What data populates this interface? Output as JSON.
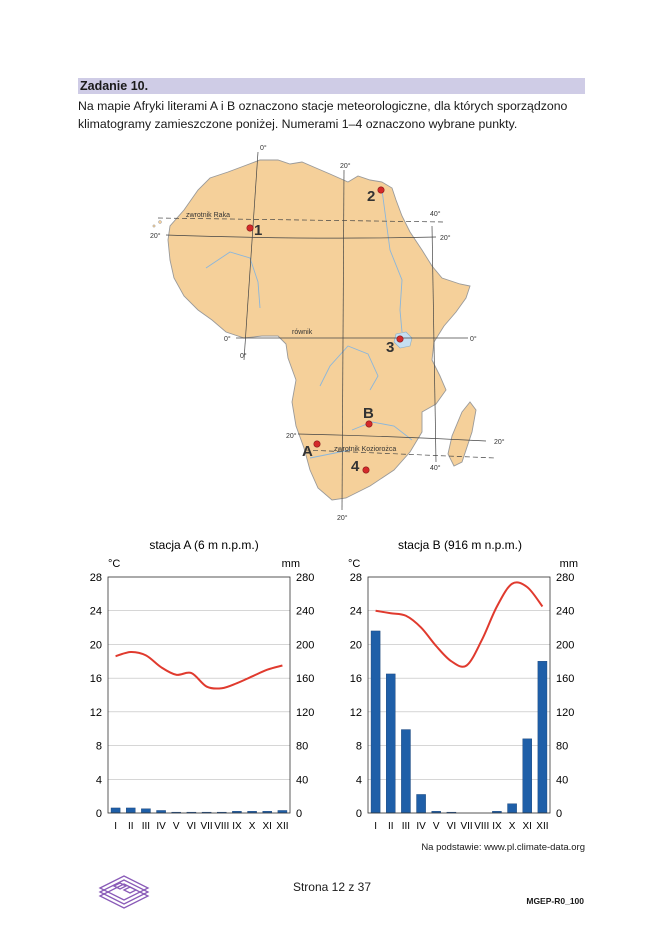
{
  "task": {
    "header": "Zadanie 10.",
    "line1": "Na mapie Afryki literami A i B oznaczono stacje meteorologiczne, dla których sporządzono",
    "line2": "klimatogramy zamieszczone poniżej. Numerami 1–4 oznaczono wybrane punkty."
  },
  "map": {
    "meridian_0_top": "0°",
    "meridian_0_bottom": "0°",
    "meridian_20_top": "20°",
    "meridian_20_bottom": "20°",
    "meridian_40_top": "40°",
    "meridian_40_bottom": "40°",
    "parallel_20n_left": "20°",
    "parallel_20n_right": "20°",
    "equator_left": "0°",
    "equator_right": "0°",
    "parallel_20s_left": "20°",
    "parallel_20s_right": "20°",
    "tropic_cancer": "zwrotnik Raka",
    "equator_label": "równik",
    "tropic_capricorn": "zwrotnik Koziorożca",
    "points": [
      "1",
      "2",
      "3",
      "4"
    ],
    "stations": [
      "A",
      "B"
    ],
    "colors": {
      "land": "#f5d09a",
      "coast": "#9a9a9a",
      "water": "#c6dff0",
      "point": "#d42a2a"
    }
  },
  "chart_data": [
    {
      "type": "bar+line",
      "title": "stacja A (6 m n.p.m.)",
      "ylabel_left": "°C",
      "ylabel_right": "mm",
      "categories": [
        "I",
        "II",
        "III",
        "IV",
        "V",
        "VI",
        "VII",
        "VIII",
        "IX",
        "X",
        "XI",
        "XII"
      ],
      "temperature": [
        18.6,
        19.1,
        18.7,
        17.3,
        16.4,
        16.6,
        15.0,
        14.8,
        15.4,
        16.2,
        17.0,
        17.5
      ],
      "precipitation": [
        6,
        6,
        5,
        3,
        1,
        1,
        1,
        1,
        2,
        2,
        2,
        3
      ],
      "ylim_left": [
        0,
        28
      ],
      "ylim_right": [
        0,
        280
      ],
      "yticks_left": [
        0,
        4,
        8,
        12,
        16,
        20,
        24,
        28
      ],
      "yticks_right": [
        0,
        40,
        80,
        120,
        160,
        200,
        240,
        280
      ],
      "grid": true,
      "colors": {
        "bars": "#1f5fa8",
        "line": "#e03a2e"
      }
    },
    {
      "type": "bar+line",
      "title": "stacja B (916 m n.p.m.)",
      "ylabel_left": "°C",
      "ylabel_right": "mm",
      "categories": [
        "I",
        "II",
        "III",
        "IV",
        "V",
        "VI",
        "VII",
        "VIII",
        "IX",
        "X",
        "XI",
        "XII"
      ],
      "temperature": [
        24.0,
        23.7,
        23.4,
        22.0,
        19.8,
        18.0,
        17.5,
        20.5,
        24.5,
        27.2,
        26.8,
        24.5
      ],
      "precipitation": [
        216,
        165,
        99,
        22,
        2,
        1,
        0,
        0,
        2,
        11,
        88,
        180
      ],
      "ylim_left": [
        0,
        28
      ],
      "ylim_right": [
        0,
        280
      ],
      "yticks_left": [
        0,
        4,
        8,
        12,
        16,
        20,
        24,
        28
      ],
      "yticks_right": [
        0,
        40,
        80,
        120,
        160,
        200,
        240,
        280
      ],
      "grid": true,
      "colors": {
        "bars": "#1f5fa8",
        "line": "#e03a2e"
      }
    }
  ],
  "source": "Na podstawie: www.pl.climate-data.org",
  "footer": {
    "page": "Strona 12 z 37",
    "code": "MGEP-R0_100"
  }
}
